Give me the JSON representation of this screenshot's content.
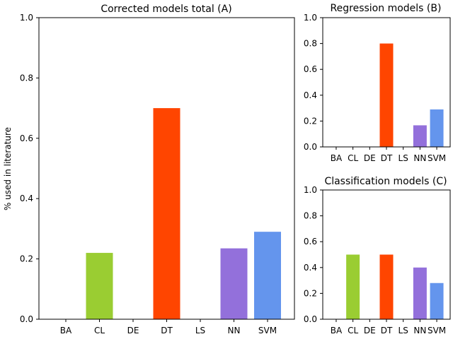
{
  "chart_data": [
    {
      "type": "bar",
      "title": "Corrected models total (A)",
      "ylabel": "% used in literature",
      "ylim": [
        0,
        1.0
      ],
      "yticks": [
        "0.0",
        "0.2",
        "0.4",
        "0.6",
        "0.8",
        "1.0"
      ],
      "categories": [
        "BA",
        "CL",
        "DE",
        "DT",
        "LS",
        "NN",
        "SVM"
      ],
      "values": [
        0,
        0.22,
        0,
        0.7,
        0,
        0.235,
        0.29
      ],
      "colors": [
        "#000000",
        "#9ACD32",
        "#000000",
        "#FF4500",
        "#000000",
        "#9370DB",
        "#6495ED"
      ]
    },
    {
      "type": "bar",
      "title": "Regression models (B)",
      "ylim": [
        0,
        1.0
      ],
      "yticks": [
        "0.0",
        "0.2",
        "0.4",
        "0.6",
        "0.8",
        "1.0"
      ],
      "categories": [
        "BA",
        "CL",
        "DE",
        "DT",
        "LS",
        "NN",
        "SVM"
      ],
      "values": [
        0,
        0,
        0,
        0.8,
        0,
        0.167,
        0.29
      ],
      "colors": [
        "#000000",
        "#9ACD32",
        "#000000",
        "#FF4500",
        "#000000",
        "#9370DB",
        "#6495ED"
      ]
    },
    {
      "type": "bar",
      "title": "Classification models (C)",
      "ylim": [
        0,
        1.0
      ],
      "yticks": [
        "0.0",
        "0.2",
        "0.4",
        "0.6",
        "0.8",
        "1.0"
      ],
      "categories": [
        "BA",
        "CL",
        "DE",
        "DT",
        "LS",
        "NN",
        "SVM"
      ],
      "values": [
        0,
        0.5,
        0,
        0.5,
        0,
        0.4,
        0.28
      ],
      "colors": [
        "#000000",
        "#9ACD32",
        "#000000",
        "#FF4500",
        "#000000",
        "#9370DB",
        "#6495ED"
      ]
    }
  ]
}
